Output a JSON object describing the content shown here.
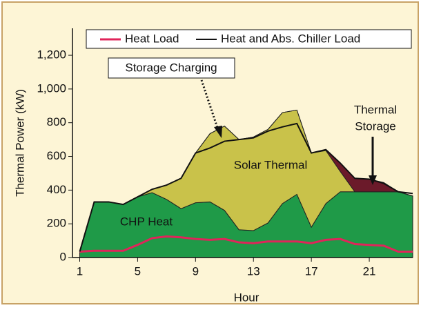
{
  "chart_data": {
    "type": "stacked_area_line",
    "xlabel": "Hour",
    "ylabel": "Thermal Power (kW)",
    "x": [
      1,
      2,
      3,
      4,
      5,
      6,
      7,
      8,
      9,
      10,
      11,
      12,
      13,
      14,
      15,
      16,
      17,
      18,
      19,
      20,
      21,
      22,
      23,
      24
    ],
    "xlim": [
      0.5,
      24
    ],
    "xticks": [
      1,
      5,
      9,
      13,
      17,
      21
    ],
    "ylim": [
      0,
      1360
    ],
    "yticks": [
      0,
      200,
      400,
      600,
      800,
      {
        "value": 1000,
        "label": "1,000"
      },
      {
        "value": 1200,
        "label": "1,200"
      }
    ],
    "areas": [
      {
        "name": "CHP Heat",
        "color": "#1f9a48",
        "values": [
          30,
          330,
          330,
          315,
          360,
          385,
          345,
          290,
          325,
          330,
          280,
          165,
          160,
          205,
          320,
          375,
          180,
          320,
          390,
          390,
          390,
          390,
          390,
          365
        ]
      },
      {
        "name": "Solar Thermal",
        "color": "#c9c24a",
        "values": [
          0,
          0,
          0,
          0,
          0,
          20,
          85,
          180,
          295,
          405,
          500,
          535,
          555,
          555,
          540,
          500,
          440,
          315,
          120,
          0,
          0,
          0,
          0,
          0
        ]
      },
      {
        "name": "Thermal Storage",
        "color": "#6b1a2a",
        "values": [
          0,
          0,
          0,
          0,
          0,
          0,
          0,
          0,
          0,
          0,
          0,
          0,
          0,
          0,
          0,
          0,
          0,
          5,
          50,
          80,
          75,
          55,
          0,
          0
        ]
      }
    ],
    "series": [
      {
        "name": "Heat Load",
        "color": "#e0245a",
        "values": [
          35,
          40,
          40,
          40,
          75,
          115,
          125,
          120,
          110,
          105,
          110,
          90,
          85,
          95,
          95,
          95,
          85,
          105,
          110,
          80,
          75,
          70,
          35,
          35
        ]
      },
      {
        "name": "Heat and Abs. Chiller Load",
        "color": "#111111",
        "values": [
          35,
          330,
          330,
          315,
          360,
          405,
          430,
          470,
          620,
          650,
          690,
          700,
          710,
          750,
          775,
          795,
          620,
          640,
          560,
          470,
          465,
          440,
          390,
          380
        ]
      }
    ],
    "annotations": {
      "storage_charging": "Storage Charging",
      "thermal_storage": [
        "Thermal",
        "Storage"
      ]
    }
  }
}
